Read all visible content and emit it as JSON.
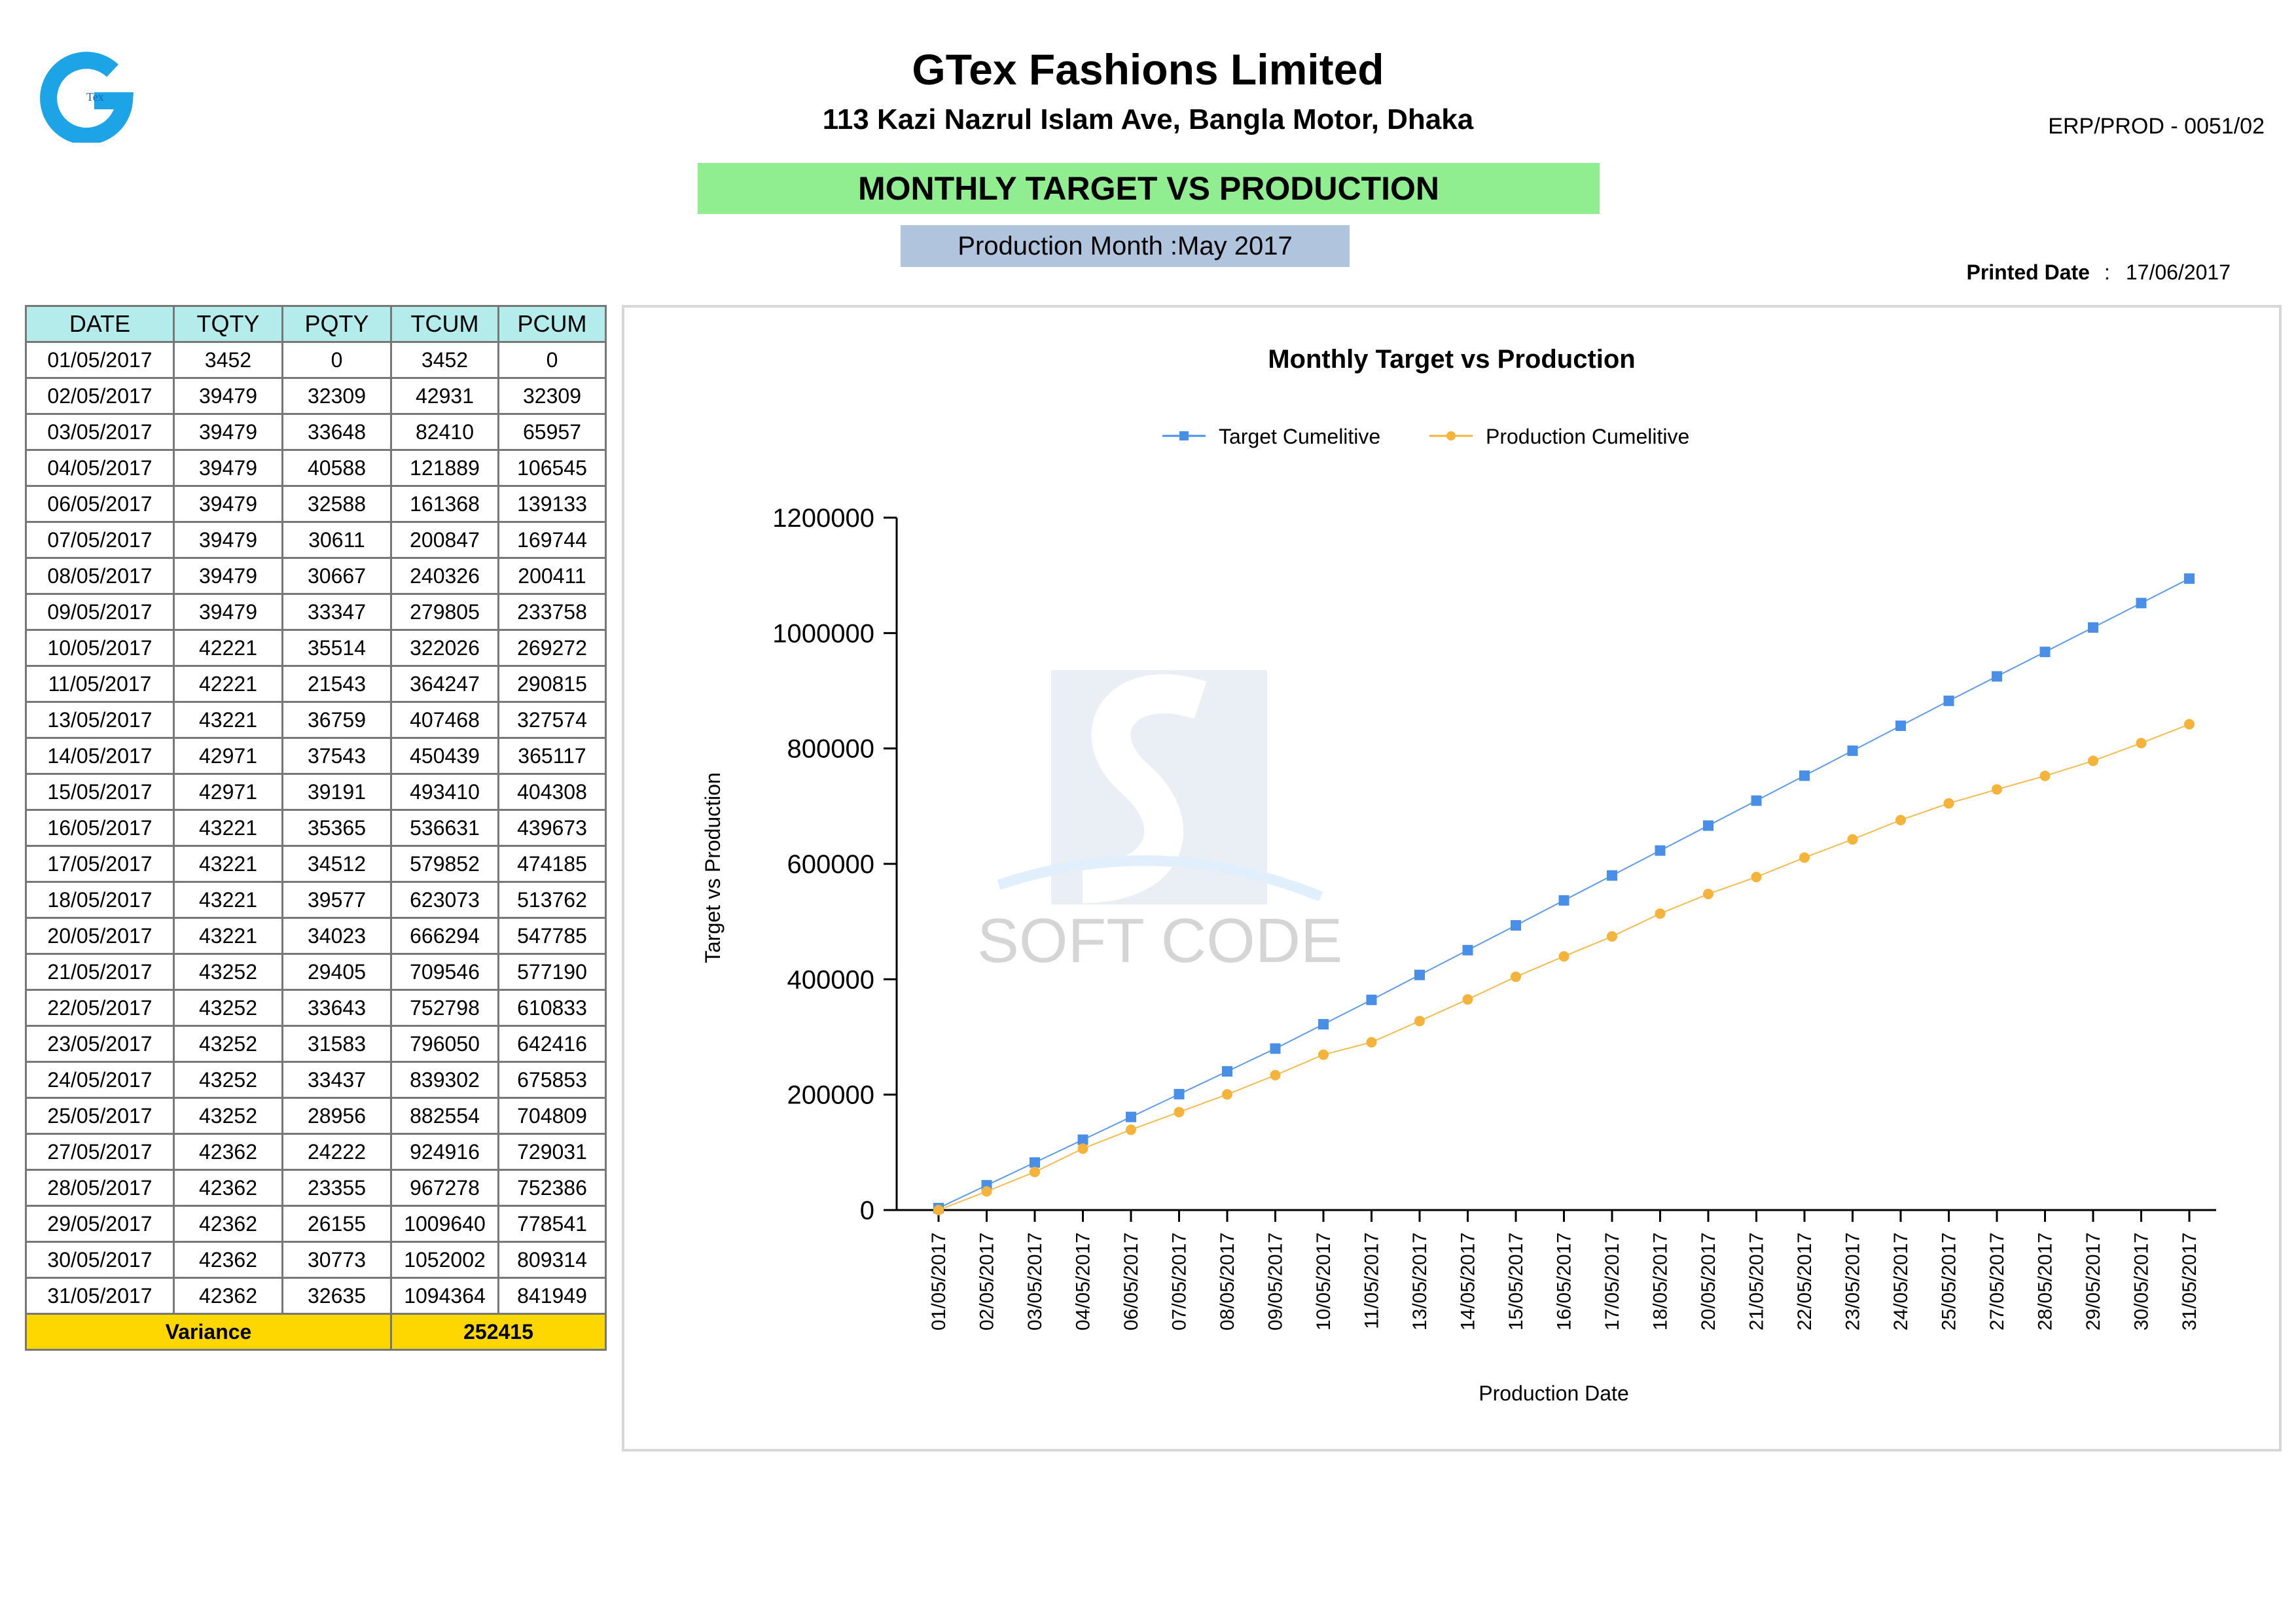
{
  "header": {
    "logo_text": "Tex",
    "company_name": "GTex Fashions Limited",
    "address": "113 Kazi Nazrul Islam Ave, Bangla Motor, Dhaka",
    "doc_code": "ERP/PROD - 0051/02",
    "report_title": "MONTHLY TARGET VS PRODUCTION",
    "production_month": "Production Month :May 2017",
    "printed_date_label": "Printed Date",
    "printed_date_colon": ":",
    "printed_date": "17/06/2017"
  },
  "table": {
    "columns": [
      "DATE",
      "TQTY",
      "PQTY",
      "TCUM",
      "PCUM"
    ],
    "rows": [
      [
        "01/05/2017",
        "3452",
        "0",
        "3452",
        "0"
      ],
      [
        "02/05/2017",
        "39479",
        "32309",
        "42931",
        "32309"
      ],
      [
        "03/05/2017",
        "39479",
        "33648",
        "82410",
        "65957"
      ],
      [
        "04/05/2017",
        "39479",
        "40588",
        "121889",
        "106545"
      ],
      [
        "06/05/2017",
        "39479",
        "32588",
        "161368",
        "139133"
      ],
      [
        "07/05/2017",
        "39479",
        "30611",
        "200847",
        "169744"
      ],
      [
        "08/05/2017",
        "39479",
        "30667",
        "240326",
        "200411"
      ],
      [
        "09/05/2017",
        "39479",
        "33347",
        "279805",
        "233758"
      ],
      [
        "10/05/2017",
        "42221",
        "35514",
        "322026",
        "269272"
      ],
      [
        "11/05/2017",
        "42221",
        "21543",
        "364247",
        "290815"
      ],
      [
        "13/05/2017",
        "43221",
        "36759",
        "407468",
        "327574"
      ],
      [
        "14/05/2017",
        "42971",
        "37543",
        "450439",
        "365117"
      ],
      [
        "15/05/2017",
        "42971",
        "39191",
        "493410",
        "404308"
      ],
      [
        "16/05/2017",
        "43221",
        "35365",
        "536631",
        "439673"
      ],
      [
        "17/05/2017",
        "43221",
        "34512",
        "579852",
        "474185"
      ],
      [
        "18/05/2017",
        "43221",
        "39577",
        "623073",
        "513762"
      ],
      [
        "20/05/2017",
        "43221",
        "34023",
        "666294",
        "547785"
      ],
      [
        "21/05/2017",
        "43252",
        "29405",
        "709546",
        "577190"
      ],
      [
        "22/05/2017",
        "43252",
        "33643",
        "752798",
        "610833"
      ],
      [
        "23/05/2017",
        "43252",
        "31583",
        "796050",
        "642416"
      ],
      [
        "24/05/2017",
        "43252",
        "33437",
        "839302",
        "675853"
      ],
      [
        "25/05/2017",
        "43252",
        "28956",
        "882554",
        "704809"
      ],
      [
        "27/05/2017",
        "42362",
        "24222",
        "924916",
        "729031"
      ],
      [
        "28/05/2017",
        "42362",
        "23355",
        "967278",
        "752386"
      ],
      [
        "29/05/2017",
        "42362",
        "26155",
        "1009640",
        "778541"
      ],
      [
        "30/05/2017",
        "42362",
        "30773",
        "1052002",
        "809314"
      ],
      [
        "31/05/2017",
        "42362",
        "32635",
        "1094364",
        "841949"
      ]
    ],
    "variance_label": "Variance",
    "variance_value": "252415"
  },
  "chart_data": {
    "type": "line",
    "title": "Monthly Target vs Production",
    "xlabel": "Production Date",
    "ylabel": "Target vs Production",
    "ylim": [
      0,
      1200000
    ],
    "yticks": [
      0,
      200000,
      400000,
      600000,
      800000,
      1000000,
      1200000
    ],
    "legend_position": "top-center",
    "grid": false,
    "watermark_text": "SOFT CODE",
    "categories": [
      "01/05/2017",
      "02/05/2017",
      "03/05/2017",
      "04/05/2017",
      "06/05/2017",
      "07/05/2017",
      "08/05/2017",
      "09/05/2017",
      "10/05/2017",
      "11/05/2017",
      "13/05/2017",
      "14/05/2017",
      "15/05/2017",
      "16/05/2017",
      "17/05/2017",
      "18/05/2017",
      "20/05/2017",
      "21/05/2017",
      "22/05/2017",
      "23/05/2017",
      "24/05/2017",
      "25/05/2017",
      "27/05/2017",
      "28/05/2017",
      "29/05/2017",
      "30/05/2017",
      "31/05/2017"
    ],
    "series": [
      {
        "name": "Target Cumelitive",
        "color": "#4a8fe7",
        "marker": "square",
        "values": [
          3452,
          42931,
          82410,
          121889,
          161368,
          200847,
          240326,
          279805,
          322026,
          364247,
          407468,
          450439,
          493410,
          536631,
          579852,
          623073,
          666294,
          709546,
          752798,
          796050,
          839302,
          882554,
          924916,
          967278,
          1009640,
          1052002,
          1094364
        ]
      },
      {
        "name": "Production Cumelitive",
        "color": "#f4b43b",
        "marker": "circle",
        "values": [
          0,
          32309,
          65957,
          106545,
          139133,
          169744,
          200411,
          233758,
          269272,
          290815,
          327574,
          365117,
          404308,
          439673,
          474185,
          513762,
          547785,
          577190,
          610833,
          642416,
          675853,
          704809,
          729031,
          752386,
          778541,
          809314,
          841949
        ]
      }
    ]
  }
}
